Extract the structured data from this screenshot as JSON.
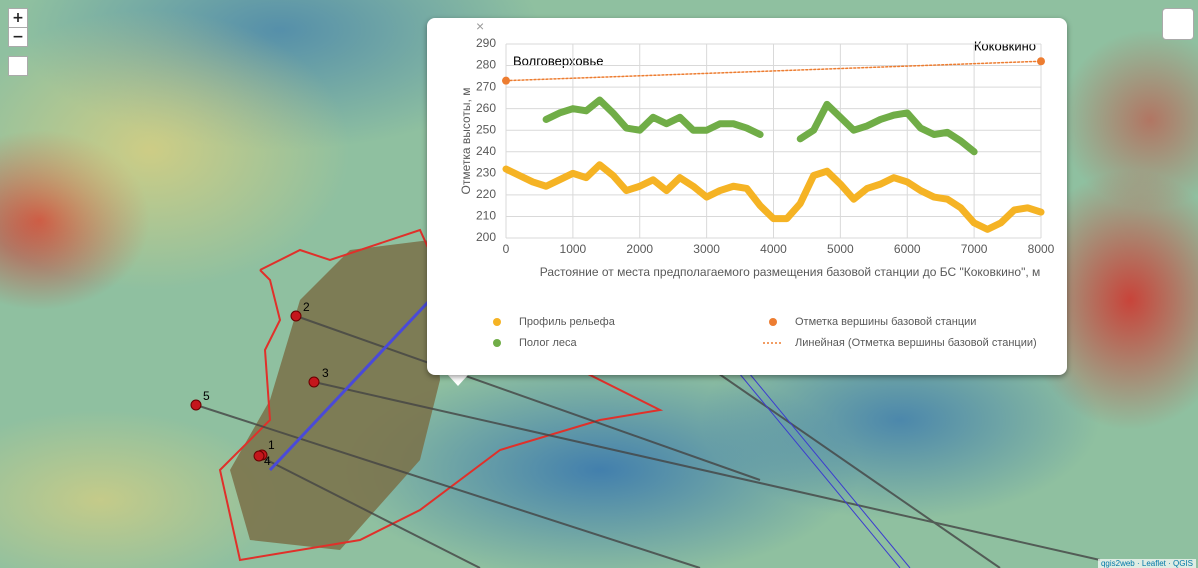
{
  "map": {
    "zoom_in": "+",
    "zoom_out": "−",
    "popup_close": "×",
    "attribution": "qgis2web · Leaflet · QGIS",
    "points": [
      {
        "label": "1"
      },
      {
        "label": "2"
      },
      {
        "label": "3"
      },
      {
        "label": "4"
      },
      {
        "label": "5"
      }
    ]
  },
  "chart_data": {
    "type": "line",
    "grid": true,
    "y_label": "Отметка высоты, м",
    "x_label": "Растояние от места предполагаемого размещения базовой станции до БС \"Коковкино\", м",
    "annotations": [
      "Волговерховье",
      "Коковкино"
    ],
    "xlim": [
      0,
      8000
    ],
    "xticks": [
      0,
      1000,
      2000,
      3000,
      4000,
      5000,
      6000,
      7000,
      8000
    ],
    "ylim": [
      200,
      290
    ],
    "yticks": [
      200,
      210,
      220,
      230,
      240,
      250,
      260,
      270,
      280,
      290
    ],
    "x": [
      0,
      200,
      400,
      600,
      800,
      1000,
      1200,
      1400,
      1600,
      1800,
      2000,
      2200,
      2400,
      2600,
      2800,
      3000,
      3200,
      3400,
      3600,
      3800,
      4000,
      4200,
      4400,
      4600,
      4800,
      5000,
      5200,
      5400,
      5600,
      5800,
      6000,
      6200,
      6400,
      6600,
      6800,
      7000,
      7200,
      7400,
      7600,
      7800,
      8000
    ],
    "series": [
      {
        "name": "Профиль рельефа",
        "color": "#f5b324",
        "style": "thick",
        "values": [
          232,
          229,
          226,
          224,
          227,
          230,
          228,
          234,
          229,
          222,
          224,
          227,
          222,
          228,
          224,
          219,
          222,
          224,
          223,
          215,
          209,
          209,
          216,
          229,
          231,
          225,
          218,
          223,
          225,
          228,
          226,
          222,
          219,
          218,
          214,
          207,
          204,
          207,
          213,
          214,
          212
        ]
      },
      {
        "name": "Отметка вершины базовой станции",
        "color": "#ed7d31",
        "style": "points",
        "x": [
          0,
          8000
        ],
        "values": [
          273,
          282
        ]
      },
      {
        "name": "Полог леса",
        "color": "#70ad47",
        "style": "thick",
        "values": [
          null,
          null,
          null,
          255,
          258,
          260,
          259,
          264,
          258,
          251,
          250,
          256,
          253,
          256,
          250,
          250,
          253,
          253,
          251,
          248,
          null,
          null,
          246,
          250,
          262,
          256,
          250,
          252,
          255,
          257,
          258,
          251,
          248,
          249,
          245,
          240,
          null,
          null,
          null,
          null,
          null
        ]
      },
      {
        "name": "Линейная (Отметка вершины базовой станции)",
        "color": "#ed7d31",
        "style": "dotted",
        "x": [
          0,
          8000
        ],
        "values": [
          273,
          282
        ]
      }
    ]
  }
}
